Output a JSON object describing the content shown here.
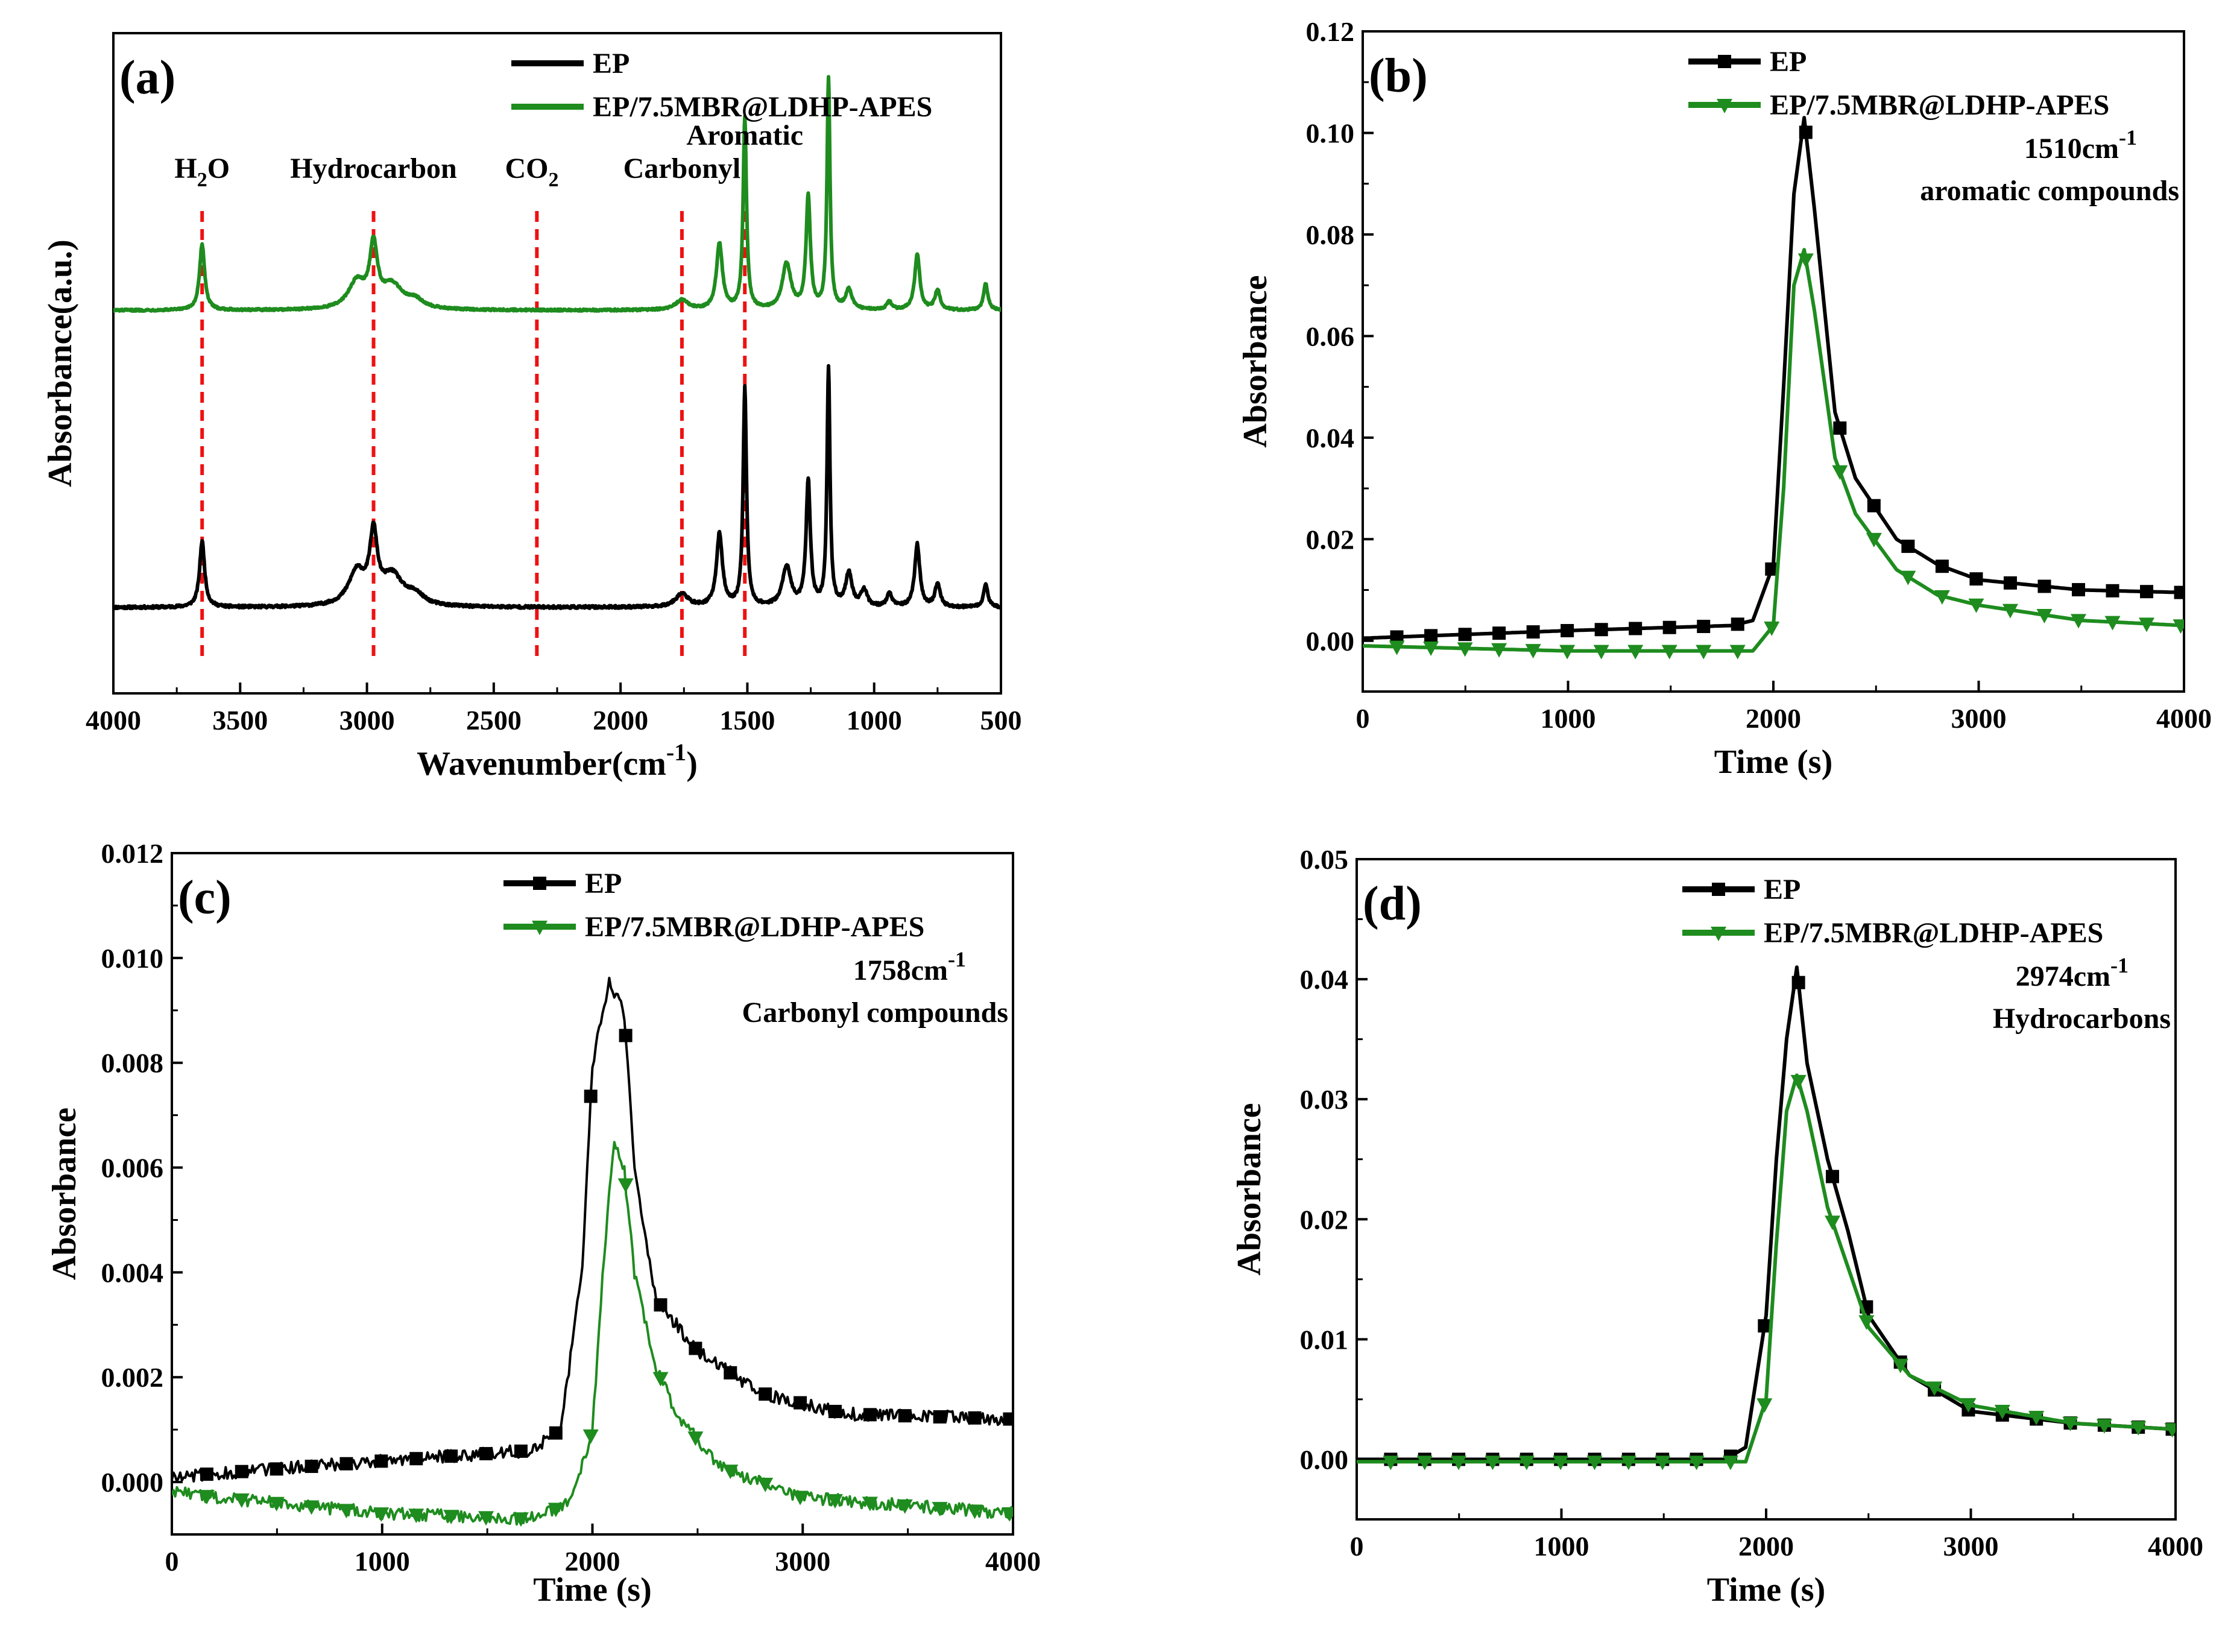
{
  "figure": {
    "colors": {
      "EP": "#000000",
      "EP/7.5MBR@LDHP-APES": "#1e8c1e",
      "guide": "#ee1111"
    }
  },
  "chart_data": [
    {
      "id": "a",
      "type": "line",
      "panel_label": "(a)",
      "xlabel": "Wavenumber(cm-1)",
      "xlabel_main": "Wavenumber(cm",
      "xlabel_sup": "-1",
      "xlabel_close": ")",
      "ylabel": "Absorbance(a.u.)",
      "xlim": [
        4000,
        500
      ],
      "x_reversed": true,
      "ylim": [
        0,
        1
      ],
      "yticks_shown": false,
      "xticks": [
        "4000",
        "3500",
        "3000",
        "2500",
        "2000",
        "1500",
        "1000",
        "500"
      ],
      "xtick_values": [
        4000,
        3500,
        3000,
        2500,
        2000,
        1500,
        1000,
        500
      ],
      "legend": [
        "EP",
        "EP/7.5MBR@LDHP-APES"
      ],
      "annotations": [
        {
          "main": "H",
          "sub": "2",
          "tail": "O",
          "x": 3650
        },
        {
          "main": "Hydrocarbon",
          "x": 2974
        },
        {
          "main": "CO",
          "sub": "2",
          "tail": "",
          "x": 2350
        },
        {
          "main": "Carbonyl",
          "x": 1758
        },
        {
          "main": "Aromatic",
          "x": 1510
        }
      ],
      "guide_lines": [
        3650,
        2974,
        2330,
        1758,
        1510
      ],
      "series": [
        {
          "name": "EP",
          "baseline": 0.13,
          "noise": 0.004,
          "peaks": [
            [
              3650,
              0.1,
              12
            ],
            [
              3040,
              0.05,
              40
            ],
            [
              2974,
              0.1,
              18
            ],
            [
              2900,
              0.045,
              50
            ],
            [
              2810,
              0.015,
              40
            ],
            [
              1758,
              0.02,
              30
            ],
            [
              1610,
              0.11,
              14
            ],
            [
              1510,
              0.33,
              8
            ],
            [
              1345,
              0.06,
              20
            ],
            [
              1260,
              0.19,
              10
            ],
            [
              1180,
              0.36,
              7
            ],
            [
              1100,
              0.05,
              15
            ],
            [
              1040,
              0.025,
              14
            ],
            [
              940,
              0.02,
              12
            ],
            [
              830,
              0.095,
              12
            ],
            [
              750,
              0.035,
              12
            ],
            [
              560,
              0.035,
              10
            ]
          ]
        },
        {
          "name": "EP/7.5MBR@LDHP-APES",
          "baseline": 0.58,
          "noise": 0.003,
          "peaks": [
            [
              3650,
              0.1,
              12
            ],
            [
              3040,
              0.04,
              40
            ],
            [
              2974,
              0.09,
              18
            ],
            [
              2900,
              0.035,
              50
            ],
            [
              2810,
              0.012,
              40
            ],
            [
              1758,
              0.015,
              30
            ],
            [
              1610,
              0.1,
              14
            ],
            [
              1510,
              0.29,
              8
            ],
            [
              1345,
              0.07,
              20
            ],
            [
              1260,
              0.17,
              10
            ],
            [
              1180,
              0.35,
              7
            ],
            [
              1100,
              0.03,
              15
            ],
            [
              940,
              0.012,
              12
            ],
            [
              830,
              0.085,
              12
            ],
            [
              750,
              0.03,
              12
            ],
            [
              560,
              0.04,
              10
            ]
          ]
        }
      ]
    },
    {
      "id": "b",
      "type": "line",
      "panel_label": "(b)",
      "xlabel": "Time (s)",
      "ylabel": "Absorbance",
      "xlim": [
        0,
        4000
      ],
      "ylim": [
        -0.01,
        0.12
      ],
      "xticks": [
        "0",
        "1000",
        "2000",
        "3000",
        "4000"
      ],
      "xtick_values": [
        0,
        1000,
        2000,
        3000,
        4000
      ],
      "yticks": [
        "0.00",
        "0.02",
        "0.04",
        "0.06",
        "0.08",
        "0.10",
        "0.12"
      ],
      "ytick_values": [
        0,
        0.02,
        0.04,
        0.06,
        0.08,
        0.1,
        0.12
      ],
      "legend": [
        "EP",
        "EP/7.5MBR@LDHP-APES"
      ],
      "annotation_line1_main": "1510cm",
      "annotation_line1_sup": "-1",
      "annotation_line2": "aromatic compounds",
      "series": [
        {
          "name": "EP",
          "x": [
            0,
            1000,
            1800,
            1900,
            2000,
            2050,
            2100,
            2150,
            2200,
            2300,
            2400,
            2600,
            2800,
            3000,
            3500,
            4000
          ],
          "y": [
            0.0005,
            0.002,
            0.003,
            0.004,
            0.015,
            0.05,
            0.088,
            0.103,
            0.085,
            0.045,
            0.032,
            0.02,
            0.015,
            0.012,
            0.01,
            0.0095
          ]
        },
        {
          "name": "EP/7.5MBR@LDHP-APES",
          "x": [
            0,
            1000,
            1900,
            2000,
            2050,
            2100,
            2150,
            2200,
            2300,
            2400,
            2600,
            2800,
            3000,
            3500,
            4000
          ],
          "y": [
            -0.001,
            -0.002,
            -0.002,
            0.003,
            0.03,
            0.07,
            0.077,
            0.065,
            0.036,
            0.025,
            0.014,
            0.009,
            0.007,
            0.004,
            0.003
          ]
        }
      ]
    },
    {
      "id": "c",
      "type": "line",
      "panel_label": "(c)",
      "xlabel": "Time (s)",
      "ylabel": "Absorbance",
      "xlim": [
        0,
        4000
      ],
      "ylim": [
        -0.001,
        0.012
      ],
      "xticks": [
        "0",
        "1000",
        "2000",
        "3000",
        "4000"
      ],
      "xtick_values": [
        0,
        1000,
        2000,
        3000,
        4000
      ],
      "yticks": [
        "0.000",
        "0.002",
        "0.004",
        "0.006",
        "0.008",
        "0.010",
        "0.012"
      ],
      "ytick_values": [
        0,
        0.002,
        0.004,
        0.006,
        0.008,
        0.01,
        0.012
      ],
      "legend": [
        "EP",
        "EP/7.5MBR@LDHP-APES"
      ],
      "annotation_line1_main": "1758cm",
      "annotation_line1_sup": "-1",
      "annotation_line2": "Carbonyl compounds",
      "series": [
        {
          "name": "EP",
          "noise": 0.00012,
          "x": [
            0,
            1000,
            1700,
            1850,
            1950,
            2000,
            2080,
            2150,
            2200,
            2300,
            2500,
            2800,
            3200,
            4000
          ],
          "y": [
            0.0001,
            0.0004,
            0.0006,
            0.001,
            0.004,
            0.008,
            0.0095,
            0.009,
            0.006,
            0.0035,
            0.0025,
            0.0017,
            0.0013,
            0.0012
          ]
        },
        {
          "name": "EP/7.5MBR@LDHP-APES",
          "noise": 0.00012,
          "x": [
            0,
            500,
            1000,
            1700,
            1900,
            2000,
            2050,
            2100,
            2150,
            2200,
            2300,
            2400,
            2600,
            3000,
            4000
          ],
          "y": [
            -0.0002,
            -0.0004,
            -0.0006,
            -0.0007,
            -0.0004,
            0.001,
            0.004,
            0.0065,
            0.006,
            0.004,
            0.0022,
            0.0013,
            0.0003,
            -0.0003,
            -0.0006
          ]
        }
      ]
    },
    {
      "id": "d",
      "type": "line",
      "panel_label": "(d)",
      "xlabel": "Time (s)",
      "ylabel": "Absorbance",
      "xlim": [
        0,
        4000
      ],
      "ylim": [
        -0.005,
        0.05
      ],
      "xticks": [
        "0",
        "1000",
        "2000",
        "3000",
        "4000"
      ],
      "xtick_values": [
        0,
        1000,
        2000,
        3000,
        4000
      ],
      "yticks": [
        "0.00",
        "0.01",
        "0.02",
        "0.03",
        "0.04",
        "0.05"
      ],
      "ytick_values": [
        0,
        0.01,
        0.02,
        0.03,
        0.04,
        0.05
      ],
      "legend": [
        "EP",
        "EP/7.5MBR@LDHP-APES"
      ],
      "annotation_line1_main": "2974cm",
      "annotation_line1_sup": "-1",
      "annotation_line2": "Hydrocarbons",
      "series": [
        {
          "name": "EP",
          "x": [
            0,
            1800,
            1900,
            2000,
            2050,
            2100,
            2150,
            2200,
            2300,
            2400,
            2500,
            2700,
            3000,
            3500,
            4000
          ],
          "y": [
            0.0,
            0.0,
            0.001,
            0.012,
            0.025,
            0.035,
            0.041,
            0.033,
            0.025,
            0.019,
            0.012,
            0.007,
            0.004,
            0.003,
            0.0025
          ]
        },
        {
          "name": "EP/7.5MBR@LDHP-APES",
          "x": [
            0,
            1900,
            2000,
            2050,
            2100,
            2150,
            2200,
            2300,
            2400,
            2500,
            2700,
            3000,
            3500,
            4000
          ],
          "y": [
            -0.0002,
            -0.0002,
            0.005,
            0.018,
            0.029,
            0.032,
            0.029,
            0.021,
            0.016,
            0.011,
            0.007,
            0.0045,
            0.003,
            0.0025
          ]
        }
      ]
    }
  ]
}
